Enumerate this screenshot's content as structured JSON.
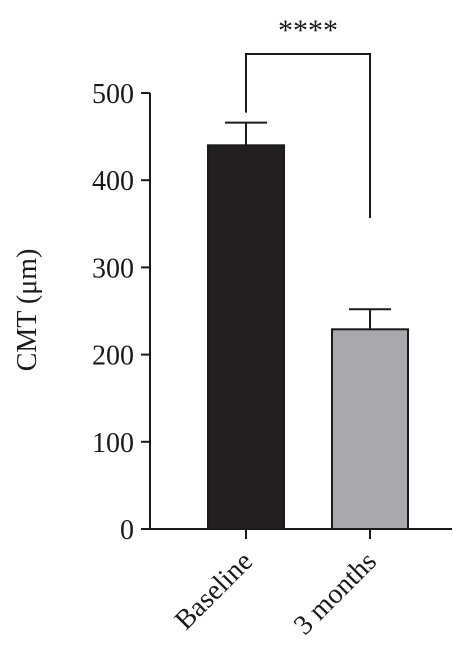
{
  "chart_data": {
    "type": "bar",
    "categories": [
      "Baseline",
      "3 months"
    ],
    "values": [
      440,
      229
    ],
    "errors": [
      26,
      23
    ],
    "ylabel": "CMT (μm)",
    "xlabel": "",
    "ylim": [
      0,
      500
    ],
    "yticks": [
      "0",
      "100",
      "200",
      "300",
      "400",
      "500"
    ],
    "bar_colors": [
      "#231f20",
      "#a7a9ac"
    ],
    "grid": false,
    "significance": {
      "label": "****",
      "from": 0,
      "to": 1
    }
  }
}
